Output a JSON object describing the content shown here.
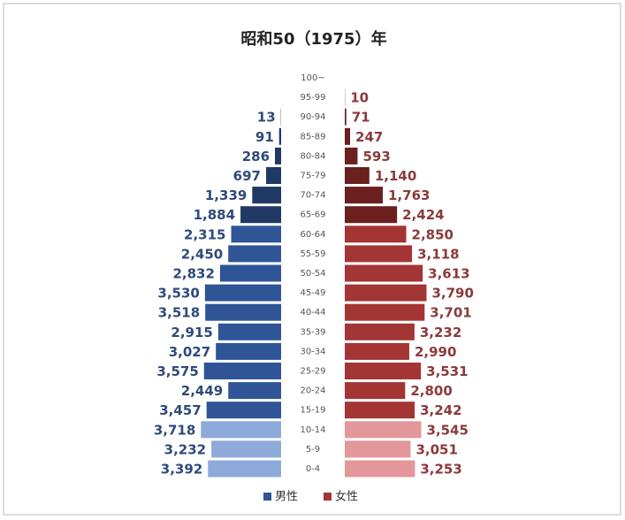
{
  "chart_data": {
    "type": "pyramid",
    "title": "昭和50（1975）年",
    "categories": [
      "100~",
      "95-99",
      "90-94",
      "85-89",
      "80-84",
      "75-79",
      "70-74",
      "65-69",
      "60-64",
      "55-59",
      "50-54",
      "45-49",
      "40-44",
      "35-39",
      "30-34",
      "25-29",
      "20-24",
      "15-19",
      "10-14",
      "5-9",
      "0-4"
    ],
    "series": [
      {
        "name": "男性",
        "color": "#2f5597",
        "colors": [
          "#1f3864",
          "#1f3864",
          "#1f3864",
          "#1f3864",
          "#1f3864",
          "#1f3864",
          "#1f3864",
          "#1f3864",
          "#2f5597",
          "#2f5597",
          "#2f5597",
          "#2f5597",
          "#2f5597",
          "#2f5597",
          "#2f5597",
          "#2f5597",
          "#2f5597",
          "#2f5597",
          "#8eaadb",
          "#8eaadb",
          "#8eaadb"
        ],
        "values": [
          null,
          null,
          13,
          91,
          286,
          697,
          1339,
          1884,
          2315,
          2450,
          2832,
          3530,
          3518,
          2915,
          3027,
          3575,
          2449,
          3457,
          3718,
          3232,
          3392
        ],
        "value_labels": [
          null,
          null,
          "13",
          "91",
          "286",
          "697",
          "1,339",
          "1,884",
          "2,315",
          "2,450",
          "2,832",
          "3,530",
          "3,518",
          "2,915",
          "3,027",
          "3,575",
          "2,449",
          "3,457",
          "3,718",
          "3,232",
          "3,392"
        ]
      },
      {
        "name": "女性",
        "color": "#a33535",
        "colors": [
          "#6b1f1f",
          "#6b1f1f",
          "#6b1f1f",
          "#6b1f1f",
          "#6b1f1f",
          "#6b1f1f",
          "#6b1f1f",
          "#6b1f1f",
          "#a33535",
          "#a33535",
          "#a33535",
          "#a33535",
          "#a33535",
          "#a33535",
          "#a33535",
          "#a33535",
          "#a33535",
          "#a33535",
          "#e3979b",
          "#e3979b",
          "#e3979b"
        ],
        "values": [
          null,
          10,
          71,
          247,
          593,
          1140,
          1763,
          2424,
          2850,
          3118,
          3613,
          3790,
          3701,
          3232,
          2990,
          3531,
          2800,
          3242,
          3545,
          3051,
          3253
        ],
        "value_labels": [
          null,
          "10",
          "71",
          "247",
          "593",
          "1,140",
          "1,763",
          "2,424",
          "2,850",
          "3,118",
          "3,613",
          "3,790",
          "3,701",
          "3,232",
          "2,990",
          "3,531",
          "2,800",
          "3,242",
          "3,545",
          "3,051",
          "3,253"
        ]
      }
    ]
  }
}
